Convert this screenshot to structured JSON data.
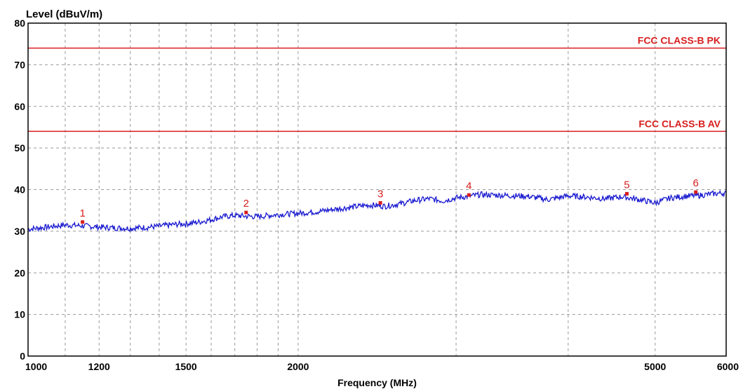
{
  "chart_data": {
    "type": "line",
    "ylabel": "Level (dBuV/m)",
    "xlabel": "Frequency (MHz)",
    "x_scale": "log",
    "xlim": [
      1000,
      6000
    ],
    "ylim": [
      0,
      80
    ],
    "x_ticks": [
      1000,
      1200,
      1500,
      2000,
      5000,
      6000
    ],
    "y_ticks": [
      0,
      10,
      20,
      30,
      40,
      50,
      60,
      70,
      80
    ],
    "grid": true,
    "colors": {
      "trace": "#1a1ad0",
      "limit": "#d81e1e",
      "grid": "#9a9a9a",
      "frame": "#000000"
    },
    "limits": [
      {
        "name": "FCC CLASS-B PK",
        "value": 74
      },
      {
        "name": "FCC CLASS-B AV",
        "value": 54
      }
    ],
    "series": [
      {
        "x": [
          1000,
          1050,
          1100,
          1150,
          1200,
          1250,
          1300,
          1350,
          1400,
          1450,
          1500,
          1550,
          1600,
          1650,
          1700,
          1750,
          1800,
          1900,
          2000,
          2100,
          2200,
          2300,
          2400,
          2500,
          2600,
          2700,
          2800,
          2900,
          3000,
          3200,
          3400,
          3600,
          3800,
          4000,
          4200,
          4400,
          4600,
          4800,
          5000,
          5200,
          5400,
          5600,
          5800,
          6000
        ],
        "y": [
          30.5,
          31.0,
          31.5,
          31.3,
          31.0,
          30.8,
          30.7,
          30.9,
          31.2,
          31.6,
          31.8,
          32.2,
          32.8,
          33.5,
          33.8,
          33.6,
          33.5,
          34.0,
          34.3,
          34.7,
          35.3,
          35.8,
          36.3,
          36.0,
          36.6,
          37.4,
          37.8,
          37.3,
          38.0,
          38.8,
          38.6,
          38.4,
          37.6,
          38.5,
          38.2,
          37.8,
          38.3,
          37.6,
          36.8,
          38.0,
          38.4,
          38.6,
          39.0,
          39.2
        ]
      }
    ],
    "markers": [
      {
        "label": "1",
        "x": 1150,
        "y": 32.2
      },
      {
        "label": "2",
        "x": 1750,
        "y": 34.5
      },
      {
        "label": "3",
        "x": 2470,
        "y": 36.8
      },
      {
        "label": "4",
        "x": 3100,
        "y": 38.7
      },
      {
        "label": "5",
        "x": 4650,
        "y": 39.0
      },
      {
        "label": "6",
        "x": 5550,
        "y": 39.4
      }
    ]
  }
}
